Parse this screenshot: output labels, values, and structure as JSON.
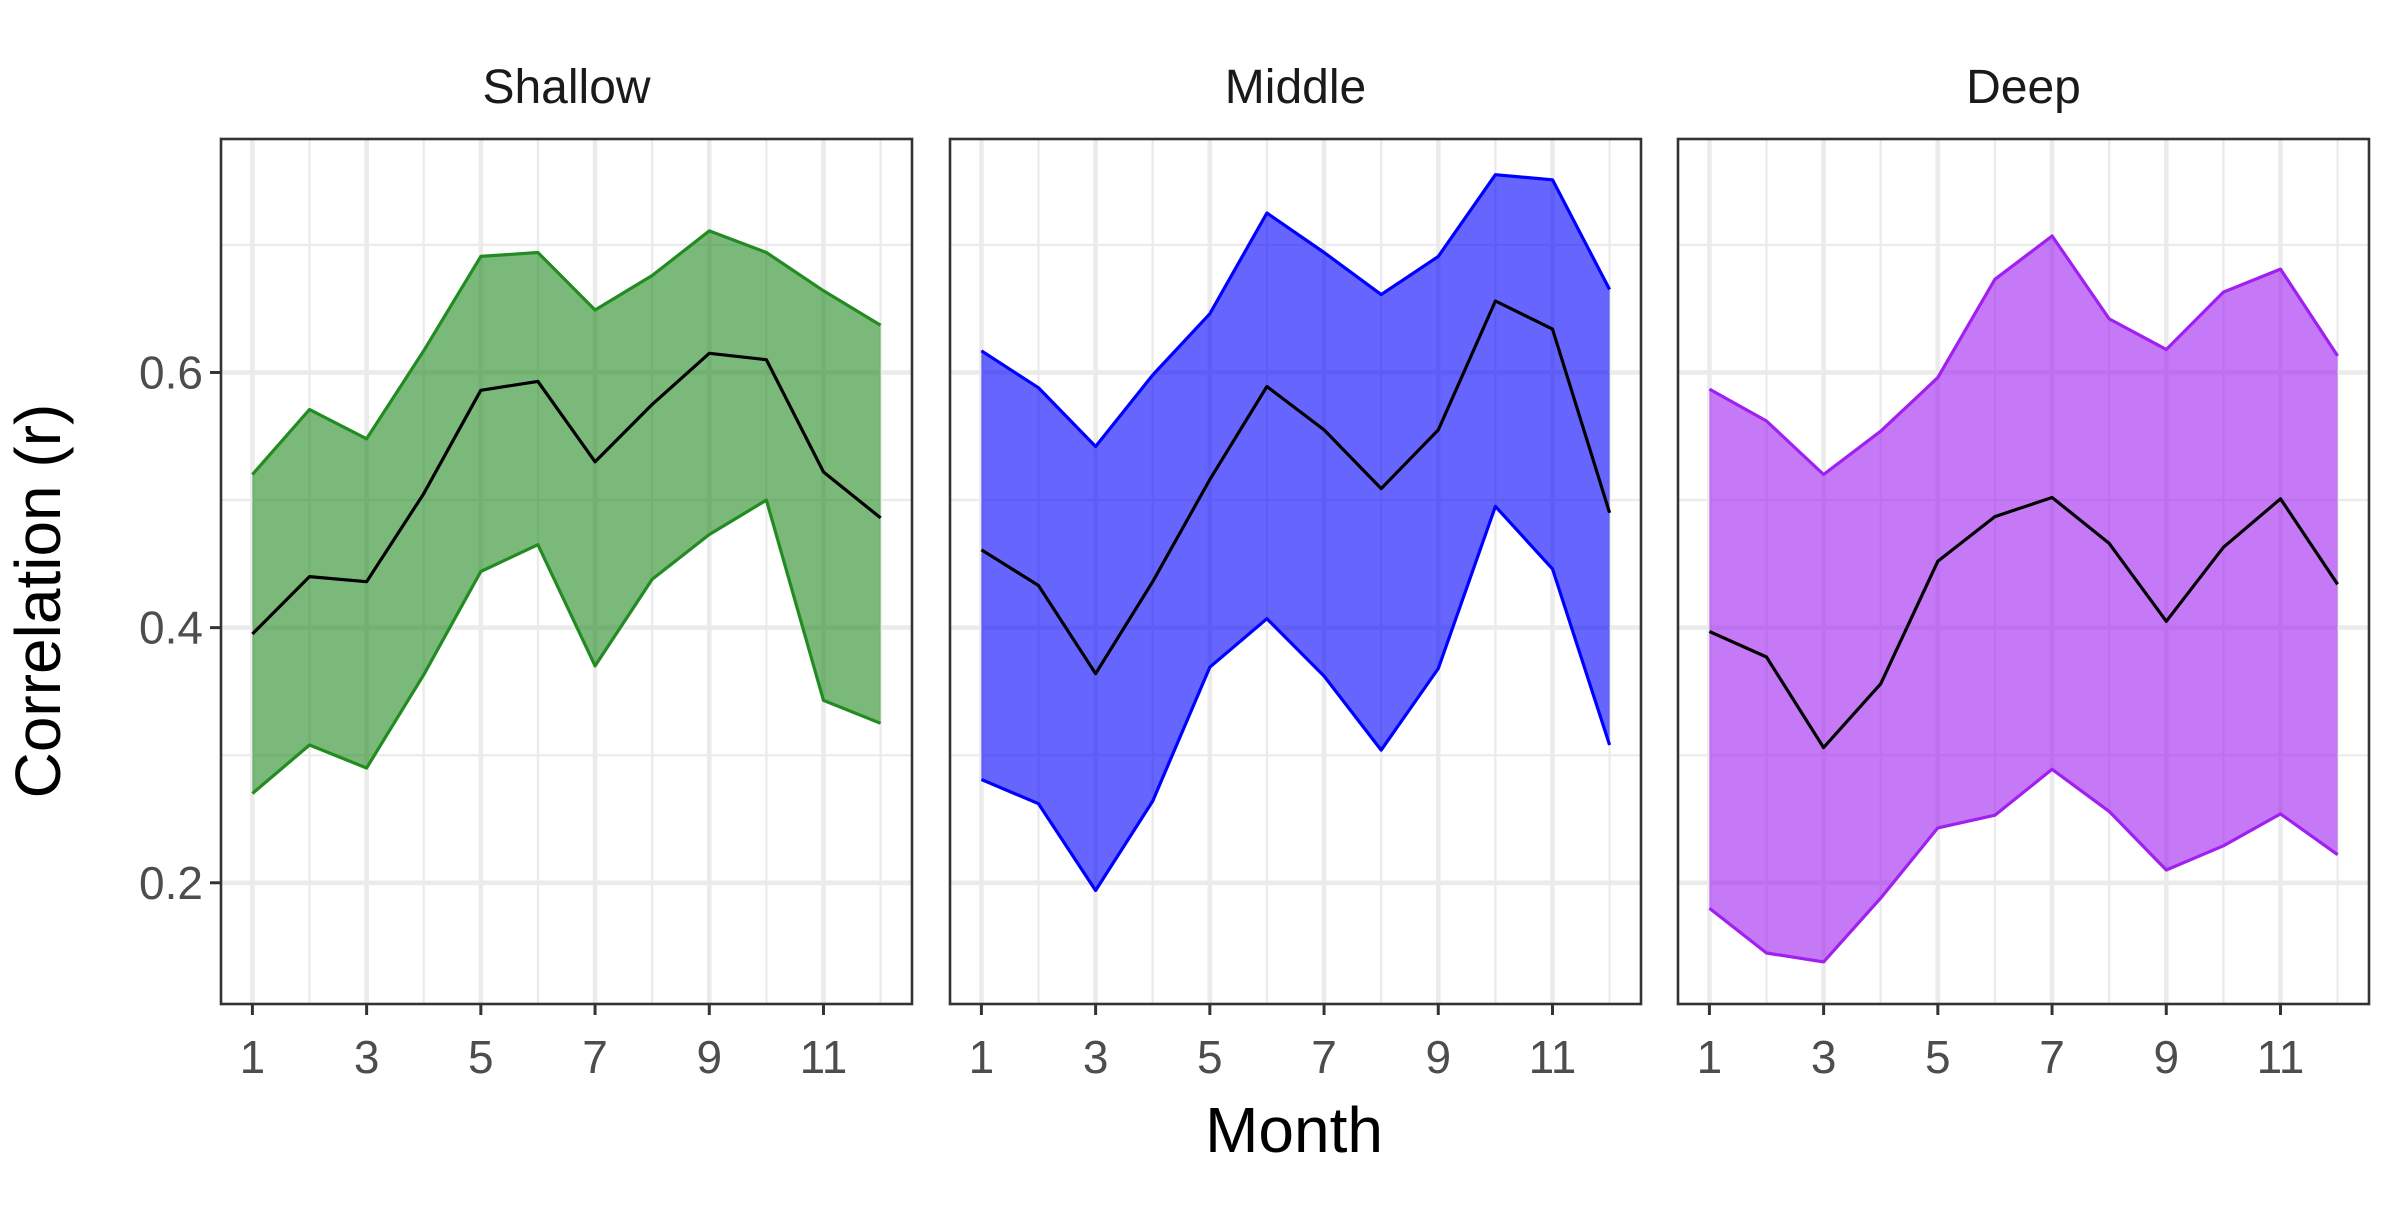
{
  "chart_data": {
    "type": "area",
    "xlabel": "Month",
    "ylabel": "Correlation (r)",
    "x": [
      1,
      2,
      3,
      4,
      5,
      6,
      7,
      8,
      9,
      10,
      11,
      12
    ],
    "x_ticks": [
      1,
      3,
      5,
      7,
      9,
      11
    ],
    "y_ticks": [
      0.2,
      0.4,
      0.6
    ],
    "xlim": [
      0.45,
      12.55
    ],
    "ylim": [
      0.105,
      0.783
    ],
    "grid": true,
    "facets": [
      {
        "name": "Shallow",
        "color": "#228B22",
        "fill_color": "#228B22",
        "fill_opacity": 0.6,
        "mean": [
          0.395,
          0.44,
          0.436,
          0.505,
          0.586,
          0.593,
          0.53,
          0.575,
          0.615,
          0.61,
          0.522,
          0.486
        ],
        "lower": [
          0.27,
          0.308,
          0.29,
          0.363,
          0.444,
          0.465,
          0.37,
          0.438,
          0.473,
          0.5,
          0.343,
          0.325
        ],
        "upper": [
          0.52,
          0.571,
          0.548,
          0.617,
          0.691,
          0.694,
          0.649,
          0.676,
          0.711,
          0.694,
          0.664,
          0.637
        ]
      },
      {
        "name": "Middle",
        "color": "#0000FF",
        "fill_color": "#0000FF",
        "fill_opacity": 0.6,
        "mean": [
          0.461,
          0.433,
          0.364,
          0.436,
          0.516,
          0.589,
          0.555,
          0.509,
          0.555,
          0.656,
          0.634,
          0.49
        ],
        "lower": [
          0.281,
          0.262,
          0.194,
          0.264,
          0.369,
          0.407,
          0.362,
          0.304,
          0.368,
          0.495,
          0.446,
          0.308
        ],
        "upper": [
          0.617,
          0.588,
          0.542,
          0.598,
          0.646,
          0.725,
          0.694,
          0.661,
          0.691,
          0.755,
          0.751,
          0.665
        ]
      },
      {
        "name": "Deep",
        "color": "#A020F0",
        "fill_color": "#A020F0",
        "fill_opacity": 0.6,
        "mean": [
          0.397,
          0.377,
          0.306,
          0.356,
          0.452,
          0.487,
          0.502,
          0.466,
          0.405,
          0.463,
          0.501,
          0.434
        ],
        "lower": [
          0.18,
          0.145,
          0.138,
          0.188,
          0.243,
          0.253,
          0.289,
          0.256,
          0.21,
          0.229,
          0.254,
          0.222
        ],
        "upper": [
          0.587,
          0.562,
          0.52,
          0.554,
          0.596,
          0.673,
          0.707,
          0.642,
          0.618,
          0.663,
          0.681,
          0.613
        ]
      }
    ]
  }
}
